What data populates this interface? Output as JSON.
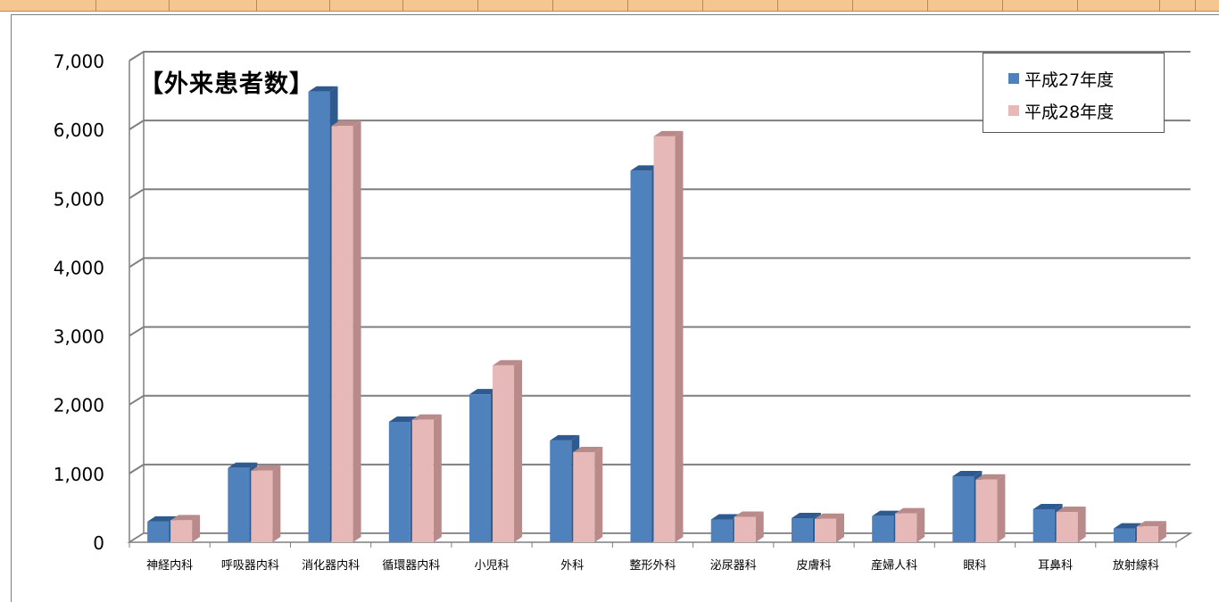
{
  "colors": {
    "series1": "#4f81bd",
    "series1_dark": "#2f5a8f",
    "series2": "#e6b9b8",
    "series2_dark": "#b88a89",
    "grid": "#7f7f7f",
    "header": "#f5c690"
  },
  "chart_data": {
    "type": "bar",
    "title": "【外来患者数】",
    "categories": [
      "神経内科",
      "呼吸器内科",
      "消化器内科",
      "循環器内科",
      "小児科",
      "外科",
      "整形外科",
      "泌尿器科",
      "皮膚科",
      "産婦人科",
      "眼科",
      "耳鼻科",
      "放射線科"
    ],
    "series": [
      {
        "name": "平成27年度",
        "values": [
          300,
          1080,
          6550,
          1750,
          2150,
          1480,
          5400,
          330,
          350,
          380,
          960,
          480,
          200
        ]
      },
      {
        "name": "平成28年度",
        "values": [
          320,
          1040,
          6050,
          1780,
          2570,
          1310,
          5900,
          370,
          340,
          420,
          910,
          440,
          230
        ]
      }
    ],
    "ylim": [
      0,
      7000
    ],
    "yticks": [
      "0",
      "1,000",
      "2,000",
      "3,000",
      "4,000",
      "5,000",
      "6,000",
      "7,000"
    ],
    "grid": true,
    "legend_position": "top-right",
    "style": "3d-clustered-column"
  }
}
